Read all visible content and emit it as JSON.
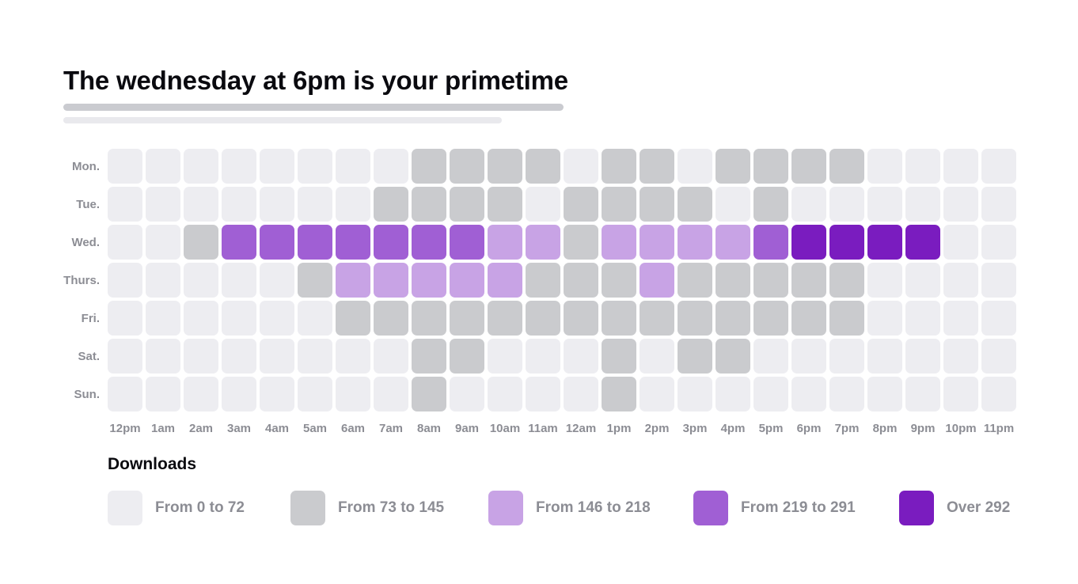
{
  "title": "The wednesday at 6pm is your primetime",
  "chart_data": {
    "type": "heatmap",
    "days": [
      "Mon.",
      "Tue.",
      "Wed.",
      "Thurs.",
      "Fri.",
      "Sat.",
      "Sun."
    ],
    "hours": [
      "12pm",
      "1am",
      "2am",
      "3am",
      "4am",
      "5am",
      "6am",
      "7am",
      "8am",
      "9am",
      "10am",
      "11am",
      "12am",
      "1pm",
      "2pm",
      "3pm",
      "4pm",
      "5pm",
      "6pm",
      "7pm",
      "8pm",
      "9pm",
      "10pm",
      "11pm"
    ],
    "value_kind": "download bucket index (0 = From 0 to 72, 1 = From 73 to 145, 2 = From 146 to 218, 3 = From 219 to 291, 4 = Over 292)",
    "values": [
      [
        0,
        0,
        0,
        0,
        0,
        0,
        0,
        0,
        1,
        1,
        1,
        1,
        0,
        1,
        1,
        0,
        1,
        1,
        1,
        1,
        0,
        0,
        0,
        0
      ],
      [
        0,
        0,
        0,
        0,
        0,
        0,
        0,
        1,
        1,
        1,
        1,
        0,
        1,
        1,
        1,
        1,
        0,
        1,
        0,
        0,
        0,
        0,
        0,
        0
      ],
      [
        0,
        0,
        1,
        3,
        3,
        3,
        3,
        3,
        3,
        3,
        2,
        2,
        1,
        2,
        2,
        2,
        2,
        3,
        4,
        4,
        4,
        4,
        0,
        0
      ],
      [
        0,
        0,
        0,
        0,
        0,
        1,
        2,
        2,
        2,
        2,
        2,
        1,
        1,
        1,
        2,
        1,
        1,
        1,
        1,
        1,
        0,
        0,
        0,
        0
      ],
      [
        0,
        0,
        0,
        0,
        0,
        0,
        1,
        1,
        1,
        1,
        1,
        1,
        1,
        1,
        1,
        1,
        1,
        1,
        1,
        1,
        0,
        0,
        0,
        0
      ],
      [
        0,
        0,
        0,
        0,
        0,
        0,
        0,
        0,
        1,
        1,
        0,
        0,
        0,
        1,
        0,
        1,
        1,
        0,
        0,
        0,
        0,
        0,
        0,
        0
      ],
      [
        0,
        0,
        0,
        0,
        0,
        0,
        0,
        0,
        1,
        0,
        0,
        0,
        0,
        1,
        0,
        0,
        0,
        0,
        0,
        0,
        0,
        0,
        0,
        0
      ]
    ],
    "legend_title": "Downloads",
    "legend": [
      {
        "label": "From 0 to 72",
        "color": "#ededf1"
      },
      {
        "label": "From 73 to 145",
        "color": "#cacbce"
      },
      {
        "label": "From 146 to 218",
        "color": "#c8a3e5"
      },
      {
        "label": "From 219 to 291",
        "color": "#a05fd4"
      },
      {
        "label": "Over 292",
        "color": "#7a1cbf"
      }
    ]
  },
  "colors": {
    "title": "#0a0a0f",
    "label": "#8c8d94",
    "subline_dark": "#cacbd0",
    "subline_light": "#e9e9ed"
  }
}
